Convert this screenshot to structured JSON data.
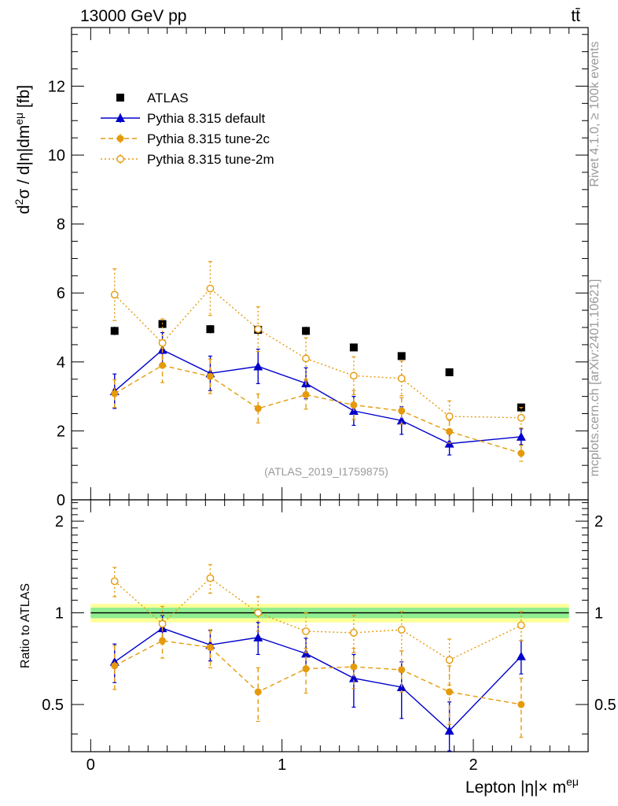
{
  "header": {
    "left": "13000 GeV pp",
    "right": "tt̄"
  },
  "side": {
    "rivet": "Rivet 4.1.0, ≥ 100k events",
    "mcplots": "mcplots.cern.ch [arXiv:2401.10621]"
  },
  "analysis_tag": "(ATLAS_2019_I1759875)",
  "ratio_ylabel": "Ratio to ATLAS",
  "colors": {
    "atlas": "#000000",
    "default": "#0000cc",
    "tune": "#e59a0c",
    "band_inner": "#90ee90",
    "band_outer": "#ffff99"
  },
  "chart_data": [
    {
      "type": "scatter",
      "panel": "main",
      "ylabel_parts": {
        "d": "d",
        "sup2": "2",
        "rest": "σ / d|η|dm",
        "sup": "eμ",
        "unit": " [fb]"
      },
      "xlabel_parts": {
        "main": "Lepton |η|× m",
        "sup": "eμ"
      },
      "xlim": [
        -0.1,
        2.6
      ],
      "ylim": [
        0,
        13.7
      ],
      "yticks": [
        0,
        2,
        4,
        6,
        8,
        10,
        12
      ],
      "ytick_labels": [
        "0",
        "2",
        "4",
        "6",
        "8",
        "10",
        "12"
      ],
      "legend": [
        "ATLAS",
        "Pythia 8.315 default",
        "Pythia 8.315 tune-2c",
        "Pythia 8.315 tune-2m"
      ],
      "legend_position": "top-left",
      "series": [
        {
          "name": "ATLAS",
          "style": "square",
          "x": [
            0.125,
            0.375,
            0.625,
            0.875,
            1.125,
            1.375,
            1.625,
            1.875,
            2.25
          ],
          "y": [
            4.9,
            5.1,
            4.95,
            4.93,
            4.9,
            4.42,
            4.17,
            3.7,
            2.68
          ],
          "err": [
            0.12,
            0.12,
            0.12,
            0.12,
            0.12,
            0.1,
            0.1,
            0.1,
            0.08
          ]
        },
        {
          "name": "Pythia 8.315 default",
          "style": "triangle",
          "x": [
            0.125,
            0.375,
            0.625,
            0.875,
            1.125,
            1.375,
            1.625,
            1.875,
            2.25
          ],
          "y": [
            3.15,
            4.35,
            3.67,
            3.87,
            3.38,
            2.58,
            2.3,
            1.63,
            1.83
          ],
          "err": [
            0.5,
            0.5,
            0.5,
            0.5,
            0.45,
            0.42,
            0.4,
            0.33,
            0.23
          ]
        },
        {
          "name": "Pythia 8.315 tune-2c",
          "style": "dot",
          "x": [
            0.125,
            0.375,
            0.625,
            0.875,
            1.125,
            1.375,
            1.625,
            1.875,
            2.25
          ],
          "y": [
            3.08,
            3.9,
            3.58,
            2.65,
            3.05,
            2.75,
            2.58,
            1.98,
            1.35
          ],
          "err": [
            0.4,
            0.5,
            0.5,
            0.42,
            0.42,
            0.42,
            0.38,
            0.33,
            0.23
          ]
        },
        {
          "name": "Pythia 8.315 tune-2m",
          "style": "circle",
          "x": [
            0.125,
            0.375,
            0.625,
            0.875,
            1.125,
            1.375,
            1.625,
            1.875,
            2.25
          ],
          "y": [
            5.95,
            4.55,
            6.13,
            4.95,
            4.1,
            3.6,
            3.52,
            2.42,
            2.38
          ],
          "err": [
            0.75,
            0.7,
            0.78,
            0.65,
            0.6,
            0.55,
            0.5,
            0.45,
            0.3
          ]
        }
      ]
    },
    {
      "type": "scatter",
      "panel": "ratio",
      "ylabel": "Ratio to ATLAS",
      "xlim": [
        -0.1,
        2.6
      ],
      "ylim": [
        0.35,
        2.35
      ],
      "xticks": [
        0,
        1,
        2
      ],
      "xtick_labels": [
        "0",
        "1",
        "2"
      ],
      "yticks": [
        0.5,
        1,
        2
      ],
      "ytick_labels": [
        "0.5",
        "1",
        "2"
      ],
      "band_inner": 0.04,
      "band_outer": 0.07,
      "series": [
        {
          "name": "Pythia 8.315 default",
          "style": "triangle",
          "x": [
            0.125,
            0.375,
            0.625,
            0.875,
            1.125,
            1.375,
            1.625,
            1.875,
            2.25
          ],
          "y": [
            0.69,
            0.89,
            0.785,
            0.83,
            0.735,
            0.61,
            0.57,
            0.41,
            0.72
          ],
          "err": [
            0.1,
            0.09,
            0.09,
            0.1,
            0.09,
            0.12,
            0.12,
            0.1,
            0.09
          ]
        },
        {
          "name": "Pythia 8.315 tune-2c",
          "style": "dot",
          "x": [
            0.125,
            0.375,
            0.625,
            0.875,
            1.125,
            1.375,
            1.625,
            1.875,
            2.25
          ],
          "y": [
            0.67,
            0.81,
            0.77,
            0.55,
            0.655,
            0.665,
            0.65,
            0.55,
            0.5
          ],
          "err": [
            0.11,
            0.1,
            0.11,
            0.11,
            0.11,
            0.1,
            0.1,
            0.12,
            0.11
          ]
        },
        {
          "name": "Pythia 8.315 tune-2m",
          "style": "circle",
          "x": [
            0.125,
            0.375,
            0.625,
            0.875,
            1.125,
            1.375,
            1.625,
            1.875,
            2.25
          ],
          "y": [
            1.27,
            0.92,
            1.3,
            1.0,
            0.87,
            0.86,
            0.88,
            0.7,
            0.91
          ],
          "err": [
            0.14,
            0.13,
            0.14,
            0.13,
            0.13,
            0.12,
            0.13,
            0.12,
            0.1
          ]
        }
      ]
    }
  ]
}
